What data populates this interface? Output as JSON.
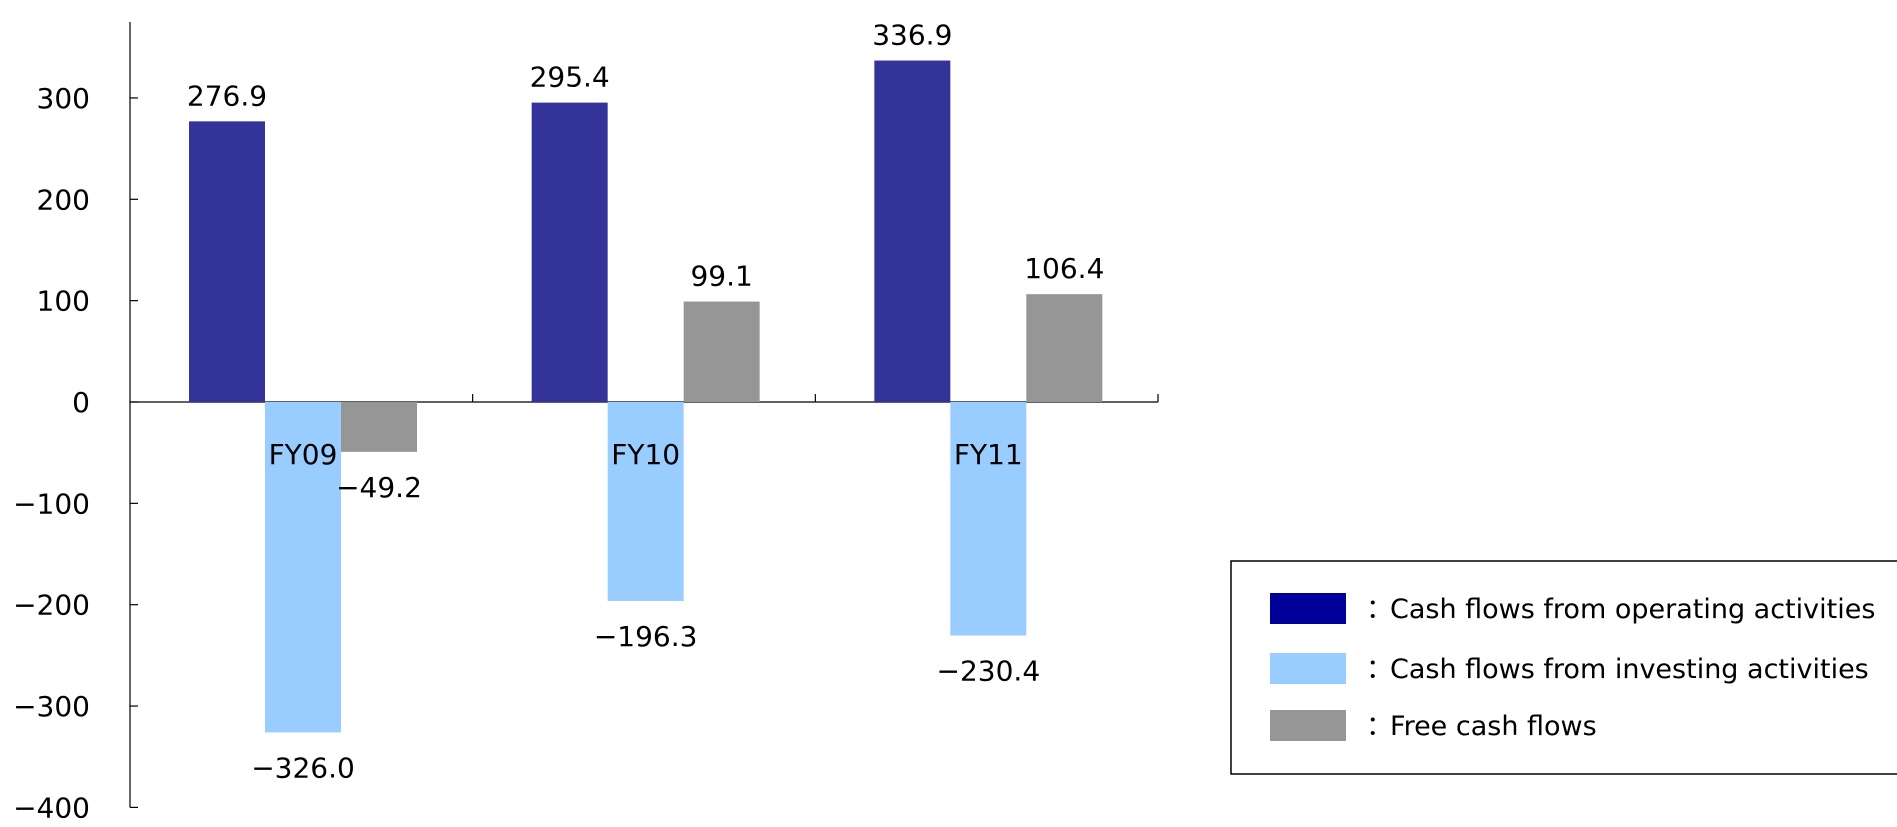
{
  "chart_data": {
    "type": "bar",
    "categories": [
      "FY09",
      "FY10",
      "FY11"
    ],
    "series": [
      {
        "name": "Cash flows from operating activities",
        "values": [
          276.9,
          295.4,
          336.9
        ],
        "labels": [
          "276.9",
          "295.4",
          "336.9"
        ],
        "color": "#333399"
      },
      {
        "name": "Cash flows from investing activities",
        "values": [
          -326.0,
          -196.3,
          -230.4
        ],
        "labels": [
          "−326.0",
          "−196.3",
          "−230.4"
        ],
        "color": "#99ccff"
      },
      {
        "name": "Free cash flows",
        "values": [
          -49.2,
          99.1,
          106.4
        ],
        "labels": [
          "−49.2",
          "99.1",
          "106.4"
        ],
        "color": "#969696"
      }
    ],
    "ylim": [
      -400,
      350
    ],
    "yticks": [
      300,
      200,
      100,
      0,
      -100,
      -200,
      -300,
      -400
    ],
    "ytick_labels": [
      "300",
      "200",
      "100",
      "0",
      "−100",
      "−200",
      "−300",
      "−400"
    ],
    "title": "",
    "xlabel": "",
    "ylabel": "",
    "grid": false,
    "legend": {
      "position": "bottom-right",
      "separator": "：",
      "swatch_colors": [
        "#000099",
        "#99ccff",
        "#969696"
      ]
    }
  }
}
